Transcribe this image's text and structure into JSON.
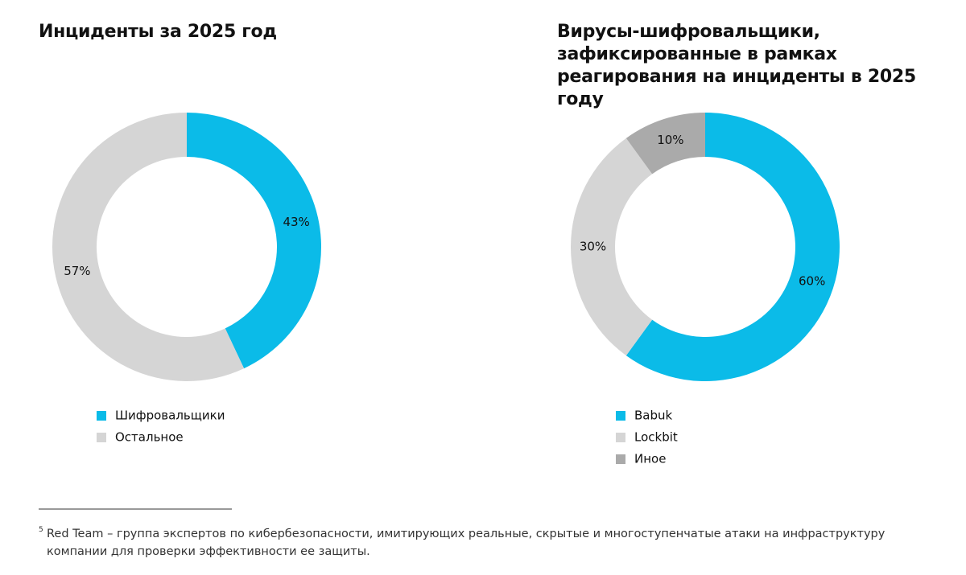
{
  "chart_data": [
    {
      "type": "pie",
      "title": "Инциденты за 2025 год",
      "categories": [
        "Шифровальщики",
        "Остальное"
      ],
      "values": [
        43,
        57
      ],
      "value_labels": [
        "43%",
        "57%"
      ],
      "colors": [
        "#0bbbe8",
        "#d5d5d5"
      ]
    },
    {
      "type": "pie",
      "title": "Вирусы-шифровальщики,\nзафиксированные в рамках\nреагирования на инциденты в 2025 году",
      "categories": [
        "Babuk",
        "Lockbit",
        "Иное"
      ],
      "values": [
        60,
        30,
        10
      ],
      "value_labels": [
        "60%",
        "30%",
        "10%"
      ],
      "colors": [
        "#0bbbe8",
        "#d5d5d5",
        "#aaaaaa"
      ]
    }
  ],
  "footnote": {
    "marker": "5",
    "text": "Red Team – группа экспертов по кибербезопасности, имитирующих реальные, скрытые и многоступенчатые атаки на инфраструктуру компании для проверки эффективности ее защиты."
  }
}
